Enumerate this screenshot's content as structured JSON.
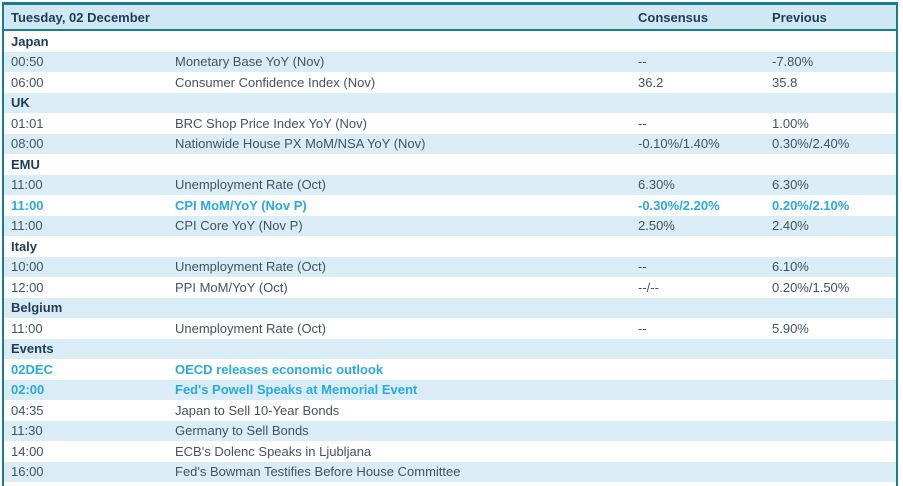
{
  "colors": {
    "accent_teal": "#1a7c8f",
    "highlight_cyan": "#29a9e1",
    "header_navy": "#1e3c55",
    "row_text": "#44525f",
    "stripe_blue": "#daedf7",
    "header_blue": "#cfe8f4"
  },
  "table": {
    "date_header": "Tuesday, 02 December",
    "columns": [
      "Consensus",
      "Previous"
    ],
    "sections": [
      {
        "name": "Japan",
        "rows": [
          {
            "time": "00:50",
            "event": "Monetary Base YoY (Nov)",
            "consensus": "--",
            "previous": "-7.80%",
            "highlight": false
          },
          {
            "time": "06:00",
            "event": "Consumer Confidence Index (Nov)",
            "consensus": "36.2",
            "previous": "35.8",
            "highlight": false
          }
        ]
      },
      {
        "name": "UK",
        "rows": [
          {
            "time": "01:01",
            "event": "BRC Shop Price Index YoY (Nov)",
            "consensus": "--",
            "previous": "1.00%",
            "highlight": false
          },
          {
            "time": "08:00",
            "event": "Nationwide House PX MoM/NSA YoY (Nov)",
            "consensus": "-0.10%/1.40%",
            "previous": "0.30%/2.40%",
            "highlight": false
          }
        ]
      },
      {
        "name": "EMU",
        "rows": [
          {
            "time": "11:00",
            "event": "Unemployment Rate (Oct)",
            "consensus": "6.30%",
            "previous": "6.30%",
            "highlight": false
          },
          {
            "time": "11:00",
            "event": "CPI MoM/YoY (Nov P)",
            "consensus": "-0.30%/2.20%",
            "previous": "0.20%/2.10%",
            "highlight": true
          },
          {
            "time": "11:00",
            "event": "CPI Core YoY (Nov P)",
            "consensus": "2.50%",
            "previous": "2.40%",
            "highlight": false
          }
        ]
      },
      {
        "name": "Italy",
        "rows": [
          {
            "time": "10:00",
            "event": "Unemployment Rate (Oct)",
            "consensus": "--",
            "previous": "6.10%",
            "highlight": false
          },
          {
            "time": "12:00",
            "event": "PPI MoM/YoY (Oct)",
            "consensus": "--/--",
            "previous": "0.20%/1.50%",
            "highlight": false
          }
        ]
      },
      {
        "name": "Belgium",
        "rows": [
          {
            "time": "11:00",
            "event": "Unemployment Rate (Oct)",
            "consensus": "--",
            "previous": "5.90%",
            "highlight": false
          }
        ]
      },
      {
        "name": "Events",
        "rows": [
          {
            "time": "02DEC",
            "event": "OECD releases economic outlook",
            "consensus": "",
            "previous": "",
            "highlight": true
          },
          {
            "time": "02:00",
            "event": "Fed's Powell Speaks at Memorial Event",
            "consensus": "",
            "previous": "",
            "highlight": true
          },
          {
            "time": "04:35",
            "event": "Japan to Sell 10-Year Bonds",
            "consensus": "",
            "previous": "",
            "highlight": false
          },
          {
            "time": "11:30",
            "event": "Germany to Sell Bonds",
            "consensus": "",
            "previous": "",
            "highlight": false
          },
          {
            "time": "14:00",
            "event": "ECB's Dolenc Speaks in Ljubljana",
            "consensus": "",
            "previous": "",
            "highlight": false
          },
          {
            "time": "16:00",
            "event": "Fed's Bowman Testifies Before House Committee",
            "consensus": "",
            "previous": "",
            "highlight": false
          }
        ]
      }
    ]
  }
}
